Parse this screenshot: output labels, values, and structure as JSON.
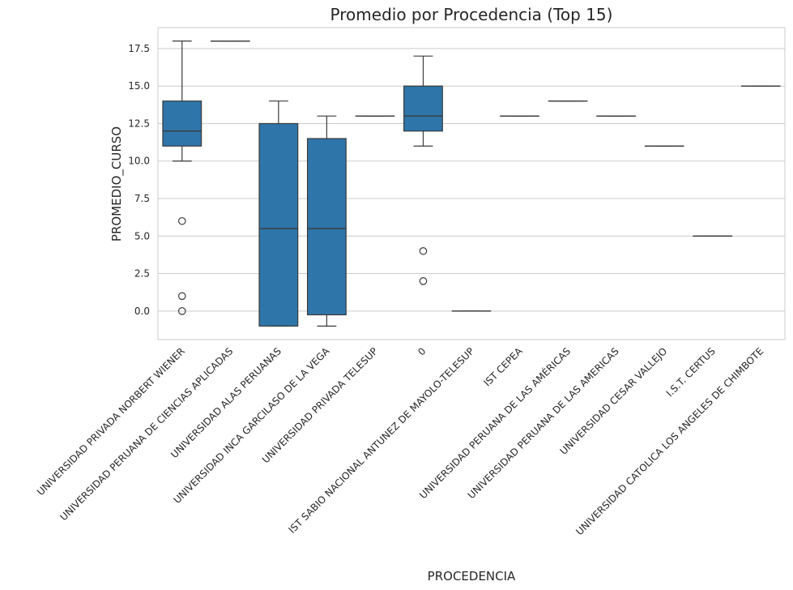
{
  "chart_data": {
    "type": "box",
    "title": "Promedio por Procedencia (Top 15)",
    "xlabel": "PROCEDENCIA",
    "ylabel": "PROMEDIO_CURSO",
    "ylim": [
      -1.9,
      18.9
    ],
    "yticks": [
      "0.0",
      "2.5",
      "5.0",
      "7.5",
      "10.0",
      "12.5",
      "15.0",
      "17.5"
    ],
    "grid": true,
    "box_color": "#2e75a9",
    "line_color": "#3b3b3b",
    "categories": [
      "UNIVERSIDAD PRIVADA NORBERT WIENER",
      "UNIVERSIDAD PERUANA DE CIENCIAS APLICADAS",
      "UNIVERSIDAD ALAS PERUANAS",
      "UNIVERSIDAD INCA GARCILASO DE LA VEGA",
      "UNIVERSIDAD PRIVADA TELESUP",
      "0",
      "IST SABIO NACIONAL ANTUNEZ DE MAYOLO-TELESUP",
      "IST CEPEA",
      "UNIVERSIDAD PERUANA DE LAS AMÉRICAS",
      "UNIVERSIDAD PERUANA DE LAS AMERICAS",
      "UNIVERSIDAD CESAR VALLEJO",
      "I.S.T. CERTUS",
      "UNIVERSIDAD CATOLICA LOS ANGELES DE CHIMBOTE"
    ],
    "boxes": [
      {
        "whisker_low": 10,
        "q1": 11,
        "median": 12,
        "q3": 14,
        "whisker_high": 18,
        "outliers": [
          6,
          1,
          0
        ]
      },
      {
        "whisker_low": 18,
        "q1": 18,
        "median": 18,
        "q3": 18,
        "whisker_high": 18,
        "outliers": []
      },
      {
        "whisker_low": -1,
        "q1": -1,
        "median": 5.5,
        "q3": 12.5,
        "whisker_high": 14,
        "outliers": []
      },
      {
        "whisker_low": -1,
        "q1": -0.25,
        "median": 5.5,
        "q3": 11.5,
        "whisker_high": 13,
        "outliers": []
      },
      {
        "whisker_low": 13,
        "q1": 13,
        "median": 13,
        "q3": 13,
        "whisker_high": 13,
        "outliers": []
      },
      {
        "whisker_low": 11,
        "q1": 12,
        "median": 13,
        "q3": 15,
        "whisker_high": 17,
        "outliers": [
          4,
          2
        ]
      },
      {
        "whisker_low": 0,
        "q1": 0,
        "median": 0,
        "q3": 0,
        "whisker_high": 0,
        "outliers": []
      },
      {
        "whisker_low": 13,
        "q1": 13,
        "median": 13,
        "q3": 13,
        "whisker_high": 13,
        "outliers": []
      },
      {
        "whisker_low": 14,
        "q1": 14,
        "median": 14,
        "q3": 14,
        "whisker_high": 14,
        "outliers": []
      },
      {
        "whisker_low": 13,
        "q1": 13,
        "median": 13,
        "q3": 13,
        "whisker_high": 13,
        "outliers": []
      },
      {
        "whisker_low": 11,
        "q1": 11,
        "median": 11,
        "q3": 11,
        "whisker_high": 11,
        "outliers": []
      },
      {
        "whisker_low": 5,
        "q1": 5,
        "median": 5,
        "q3": 5,
        "whisker_high": 5,
        "outliers": []
      },
      {
        "whisker_low": 15,
        "q1": 15,
        "median": 15,
        "q3": 15,
        "whisker_high": 15,
        "outliers": []
      }
    ]
  }
}
